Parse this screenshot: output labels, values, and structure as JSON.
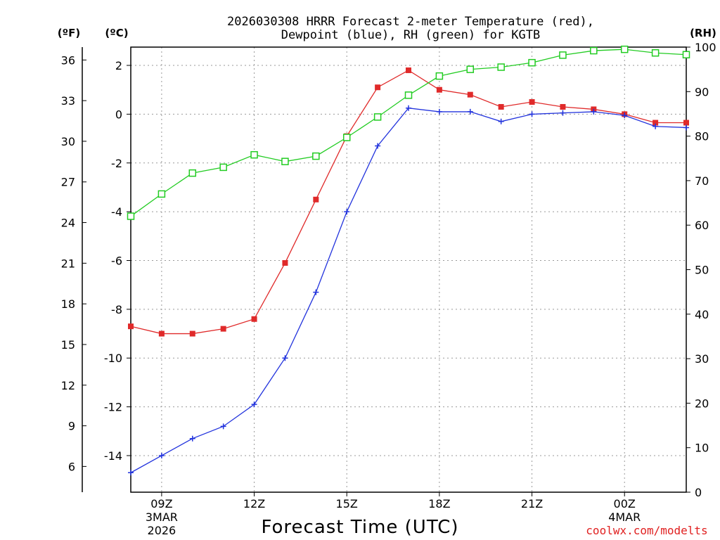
{
  "chart_data": {
    "type": "line",
    "title_line1": "2026030308 HRRR Forecast 2-meter Temperature (red),",
    "title_line2": "Dewpoint (blue), RH (green) for KGTB",
    "unit_left_f": "(ºF)",
    "unit_left_c": "(ºC)",
    "unit_right": "(RH)",
    "xlabel": "Forecast Time (UTC)",
    "credit": "coolwx.com/modelts",
    "x_hours": [
      8,
      9,
      10,
      11,
      12,
      13,
      14,
      15,
      16,
      17,
      18,
      19,
      20,
      21,
      22,
      23,
      24,
      25,
      26
    ],
    "x_ticks": [
      {
        "hour": 9,
        "label": "09Z",
        "sub1": "3MAR",
        "sub2": "2026"
      },
      {
        "hour": 12,
        "label": "12Z",
        "sub1": "",
        "sub2": ""
      },
      {
        "hour": 15,
        "label": "15Z",
        "sub1": "",
        "sub2": ""
      },
      {
        "hour": 18,
        "label": "18Z",
        "sub1": "",
        "sub2": ""
      },
      {
        "hour": 21,
        "label": "21Z",
        "sub1": "",
        "sub2": ""
      },
      {
        "hour": 24,
        "label": "00Z",
        "sub1": "4MAR",
        "sub2": ""
      }
    ],
    "xlim": [
      8,
      26
    ],
    "c_ylim": [
      -15.5,
      2.75
    ],
    "rh_ylim": [
      0,
      100
    ],
    "c_ticks": [
      "2",
      "0",
      "-2",
      "-4",
      "-6",
      "-8",
      "-10",
      "-12",
      "-14"
    ],
    "c_tick_values": [
      2,
      0,
      -2,
      -4,
      -6,
      -8,
      -10,
      -12,
      -14
    ],
    "f_ticks": [
      "36",
      "33",
      "30",
      "27",
      "24",
      "21",
      "18",
      "15",
      "12",
      "9",
      "6"
    ],
    "f_tick_values": [
      36,
      33,
      30,
      27,
      24,
      21,
      18,
      15,
      12,
      9,
      6
    ],
    "rh_ticks": [
      "100",
      "90",
      "80",
      "70",
      "60",
      "50",
      "40",
      "30",
      "20",
      "10",
      "0"
    ],
    "rh_tick_values": [
      100,
      90,
      80,
      70,
      60,
      50,
      40,
      30,
      20,
      10,
      0
    ],
    "series": [
      {
        "name": "Temperature",
        "color": "#e02a2a",
        "marker": "filled-square",
        "values": [
          -8.7,
          -9.0,
          -9.0,
          -8.8,
          -8.4,
          -6.1,
          -3.5,
          -0.9,
          1.1,
          1.8,
          1.0,
          0.8,
          0.3,
          0.5,
          0.3,
          0.2,
          0.0,
          -0.35,
          -0.35
        ]
      },
      {
        "name": "Dewpoint",
        "color": "#2233dd",
        "marker": "plus",
        "values": [
          -14.7,
          -14.0,
          -13.3,
          -12.8,
          -11.9,
          -10.0,
          -7.3,
          -4.0,
          -1.3,
          0.25,
          0.1,
          0.1,
          -0.3,
          0.0,
          0.05,
          0.1,
          -0.05,
          -0.5,
          -0.55
        ]
      },
      {
        "name": "RH",
        "color": "#22cc22",
        "marker": "open-square",
        "axis": "rh",
        "values": [
          62,
          67,
          71.7,
          73,
          75.8,
          74.3,
          75.5,
          79.7,
          84.3,
          89.2,
          93.5,
          95,
          95.5,
          96.5,
          98.2,
          99.2,
          99.5,
          98.7,
          98.3
        ]
      }
    ]
  }
}
